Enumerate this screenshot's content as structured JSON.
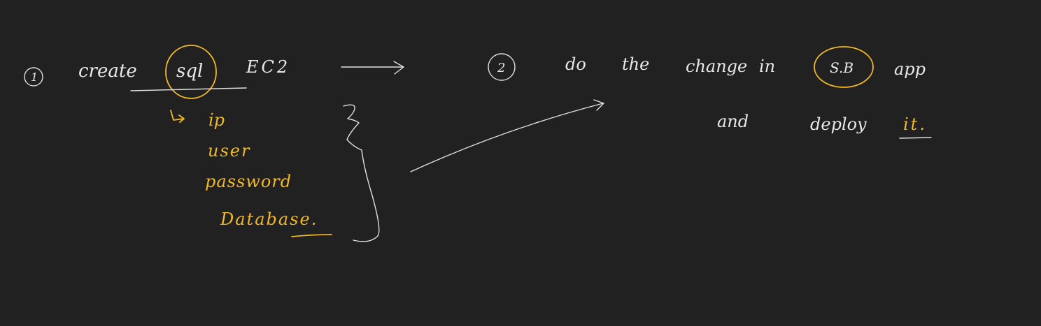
{
  "notes": {
    "step1": {
      "number": "1",
      "word": "create",
      "highlight": "sql",
      "target": "EC2"
    },
    "details": {
      "items": [
        "ip",
        "user",
        "password",
        "Database."
      ]
    },
    "step2": {
      "number": "2",
      "line1": [
        "do",
        "the",
        "change",
        "in"
      ],
      "highlight": "S.B",
      "app": "app",
      "line2_and": "and",
      "line2_deploy": "deploy",
      "line2_it": "it."
    }
  },
  "colors": {
    "background": "#212121",
    "white_ink": "#e8e8e8",
    "gold_ink": "#f2b928"
  }
}
